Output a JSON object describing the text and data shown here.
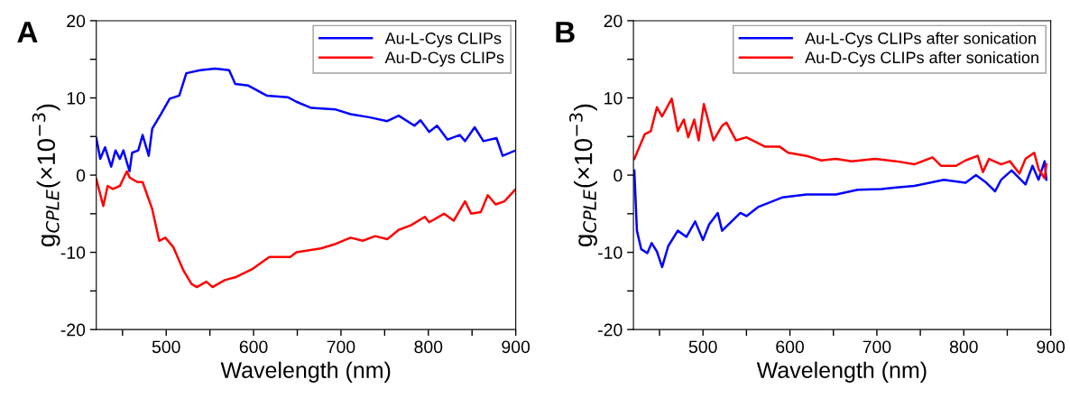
{
  "chart_data": [
    {
      "type": "line",
      "title": "A",
      "xlabel": "Wavelength (nm)",
      "ylabel": "g$_{CPLE}$(×10$^{−3}$)",
      "xlim": [
        420,
        900
      ],
      "ylim": [
        -20,
        20
      ],
      "xticks": [
        {
          "value": 450,
          "label": null
        },
        500,
        {
          "value": 550,
          "label": null
        },
        600,
        {
          "value": 650,
          "label": null
        },
        700,
        {
          "value": 750,
          "label": null
        },
        800,
        {
          "value": 850,
          "label": null
        },
        900
      ],
      "yticks": [
        -20,
        {
          "value": -15,
          "label": null
        },
        -10,
        {
          "value": -5,
          "label": null
        },
        0,
        {
          "value": 5,
          "label": null
        },
        10,
        {
          "value": 15,
          "label": null
        },
        20
      ],
      "legend": "top right",
      "grid": false,
      "series": [
        {
          "name": "Au-L-Cys CLIPs",
          "color": "#0000ff",
          "x": [
            420,
            424.5,
            430,
            437,
            442,
            447,
            451,
            458,
            461,
            468,
            473,
            480,
            484,
            494,
            504,
            515,
            523,
            539,
            556,
            572,
            579,
            594,
            615,
            639,
            649,
            666,
            694,
            711,
            732,
            753,
            766,
            784,
            791,
            801,
            810,
            822,
            836,
            842,
            853,
            863,
            878,
            885,
            900
          ],
          "values": [
            4.8,
            2.1,
            3.6,
            1.1,
            3.2,
            2.1,
            3.2,
            0.5,
            2.9,
            3.2,
            5.2,
            2.5,
            6.0,
            7.9,
            9.9,
            10.3,
            13.2,
            13.6,
            13.8,
            13.6,
            11.8,
            11.6,
            10.3,
            10.1,
            9.5,
            8.7,
            8.5,
            7.9,
            7.5,
            7.0,
            7.7,
            6.4,
            7.1,
            5.6,
            6.4,
            4.6,
            5.2,
            4.4,
            6.2,
            4.4,
            4.8,
            2.5,
            3.2
          ]
        },
        {
          "name": "Au-D-Cys CLIPs",
          "color": "#ff0000",
          "x": [
            420,
            428,
            433,
            439,
            447,
            455,
            458,
            467,
            473,
            484,
            492,
            499,
            508,
            520,
            529,
            535,
            546,
            553,
            567,
            580,
            598,
            618,
            642,
            649,
            677,
            694,
            711,
            725,
            739,
            753,
            766,
            780,
            796,
            801,
            818,
            829,
            842,
            849,
            860,
            868,
            877,
            887,
            900
          ],
          "values": [
            -0.5,
            -4.0,
            -1.4,
            -1.8,
            -1.4,
            0.5,
            -0.3,
            -0.9,
            -0.9,
            -4.4,
            -8.5,
            -8.1,
            -9.3,
            -12.4,
            -14.1,
            -14.5,
            -13.8,
            -14.5,
            -13.6,
            -13.2,
            -12.2,
            -10.6,
            -10.6,
            -10.0,
            -9.5,
            -8.9,
            -8.1,
            -8.5,
            -7.9,
            -8.3,
            -7.1,
            -6.5,
            -5.4,
            -6.1,
            -5.0,
            -5.9,
            -3.4,
            -5.0,
            -4.8,
            -2.6,
            -3.8,
            -3.4,
            -1.8
          ]
        }
      ]
    },
    {
      "type": "line",
      "title": "B",
      "xlabel": "Wavelength (nm)",
      "ylabel": "g$_{CPLE}$(×10$^{−3}$)",
      "xlim": [
        420,
        900
      ],
      "ylim": [
        -20,
        20
      ],
      "xticks": [
        {
          "value": 450,
          "label": null
        },
        500,
        {
          "value": 550,
          "label": null
        },
        600,
        {
          "value": 650,
          "label": null
        },
        700,
        {
          "value": 750,
          "label": null
        },
        800,
        {
          "value": 850,
          "label": null
        },
        900
      ],
      "yticks": [
        -20,
        {
          "value": -15,
          "label": null
        },
        -10,
        {
          "value": -5,
          "label": null
        },
        0,
        {
          "value": 5,
          "label": null
        },
        10,
        {
          "value": 15,
          "label": null
        },
        20
      ],
      "legend": "top right",
      "grid": false,
      "series": [
        {
          "name": "Au-L-Cys CLIPs after sonication",
          "color": "#0000ff",
          "x": [
            421,
            424,
            429,
            436,
            441,
            447,
            453,
            460,
            471,
            481,
            491,
            500,
            507,
            517,
            522,
            543,
            550,
            564,
            591,
            619,
            653,
            678,
            705,
            722,
            743,
            777,
            802,
            814,
            826,
            836,
            843,
            855,
            871,
            879,
            886,
            893,
            895
          ],
          "values": [
            0.6,
            -7.2,
            -9.6,
            -10.1,
            -8.8,
            -9.9,
            -11.9,
            -9.2,
            -7.2,
            -8.0,
            -6.0,
            -8.4,
            -6.4,
            -4.9,
            -7.2,
            -4.9,
            -5.3,
            -4.1,
            -2.9,
            -2.5,
            -2.5,
            -1.9,
            -1.8,
            -1.6,
            -1.4,
            -0.6,
            -1.0,
            0,
            -1.0,
            -2.1,
            -0.6,
            0.6,
            -1.2,
            1.2,
            -0.6,
            1.8,
            -0.6
          ]
        },
        {
          "name": "Au-D-Cys CLIPs after sonication",
          "color": "#ff0000",
          "x": [
            421,
            424,
            433,
            440,
            447,
            453,
            464,
            471,
            478,
            483,
            490,
            495,
            501,
            512,
            522,
            527,
            538,
            550,
            571,
            588,
            598,
            619,
            636,
            653,
            671,
            698,
            722,
            743,
            764,
            774,
            791,
            802,
            816,
            822,
            829,
            843,
            853,
            864,
            871,
            881,
            886,
            893,
            895
          ],
          "values": [
            2.1,
            2.9,
            5.3,
            5.7,
            8.8,
            7.6,
            9.9,
            5.7,
            7.2,
            4.9,
            7.2,
            4.5,
            9.2,
            4.5,
            6.4,
            6.8,
            4.5,
            4.9,
            3.7,
            3.7,
            2.9,
            2.5,
            1.9,
            2.1,
            1.8,
            2.1,
            1.8,
            1.4,
            2.3,
            1.2,
            1.2,
            1.9,
            2.5,
            0.4,
            2.1,
            1.4,
            1.8,
            0.2,
            2.1,
            2.9,
            0.8,
            -0.4,
            1.4
          ]
        }
      ]
    }
  ]
}
